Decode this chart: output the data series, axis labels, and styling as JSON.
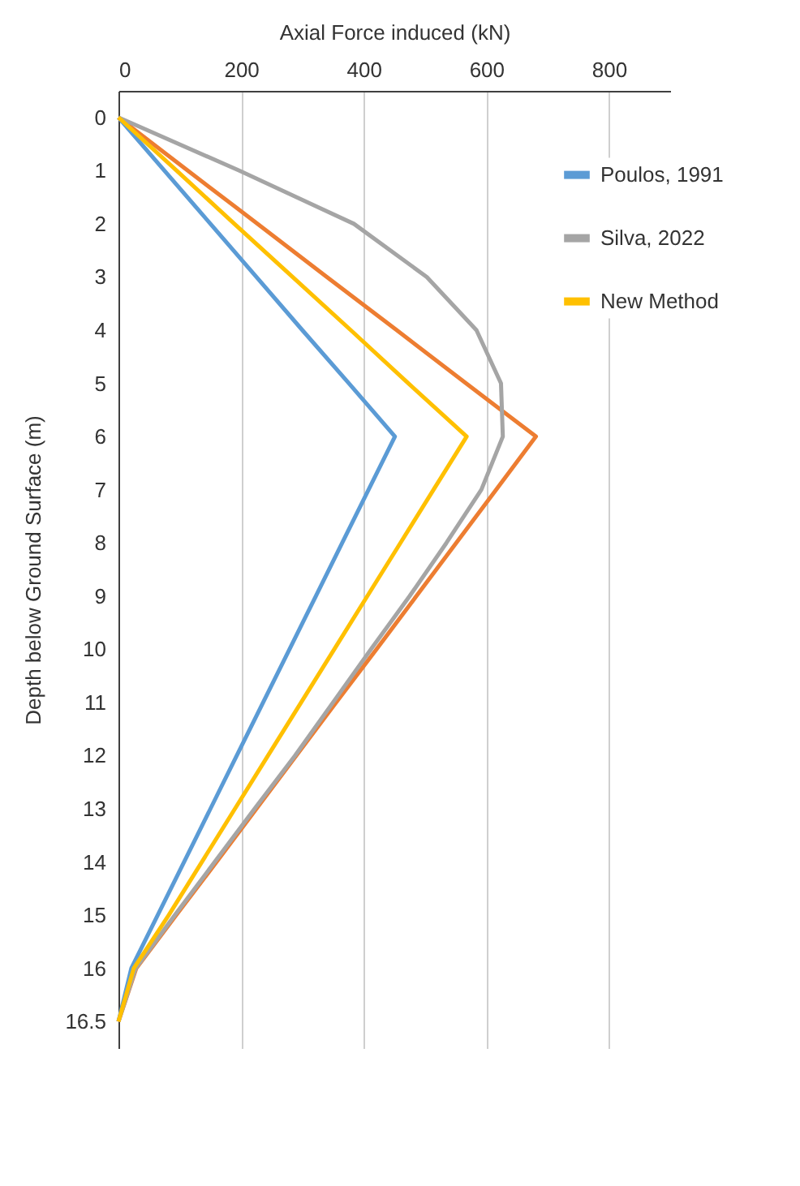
{
  "chart_data": {
    "type": "line",
    "xlabel": "Axial Force induced (kN)",
    "ylabel": "Depth below Ground Surface (m)",
    "categories": [
      "0",
      "1",
      "2",
      "3",
      "4",
      "5",
      "6",
      "7",
      "8",
      "9",
      "10",
      "11",
      "12",
      "13",
      "14",
      "15",
      "16",
      "16.5"
    ],
    "orientation": "horizontal",
    "xlim": [
      0,
      900
    ],
    "xticks": [
      0,
      200,
      400,
      600,
      800
    ],
    "grid": "x",
    "legend": "right",
    "marker": "none",
    "series": [
      {
        "name": "Poulos, 1991",
        "color": "#5b9bd5",
        "values": [
          0,
          75,
          150,
          225,
          300,
          376,
          451,
          408,
          365,
          322,
          279,
          236,
          193,
          150,
          107,
          64,
          21,
          0
        ]
      },
      {
        "color": "#ed7d31",
        "values": [
          0,
          113,
          227,
          340,
          454,
          567,
          681,
          616,
          551,
          486,
          421,
          355,
          290,
          225,
          160,
          94,
          29,
          0
        ]
      },
      {
        "name": "Silva, 2022",
        "color": "#a5a5a5",
        "values": [
          0,
          197,
          384,
          503,
          584,
          624,
          627,
          592,
          535,
          475,
          412,
          350,
          288,
          222,
          157,
          92,
          28,
          0
        ]
      },
      {
        "name": "New Method",
        "color": "#ffc000",
        "values": [
          0,
          95,
          189,
          284,
          379,
          473,
          568,
          514,
          460,
          406,
          352,
          298,
          244,
          190,
          136,
          82,
          25,
          0
        ]
      }
    ]
  }
}
